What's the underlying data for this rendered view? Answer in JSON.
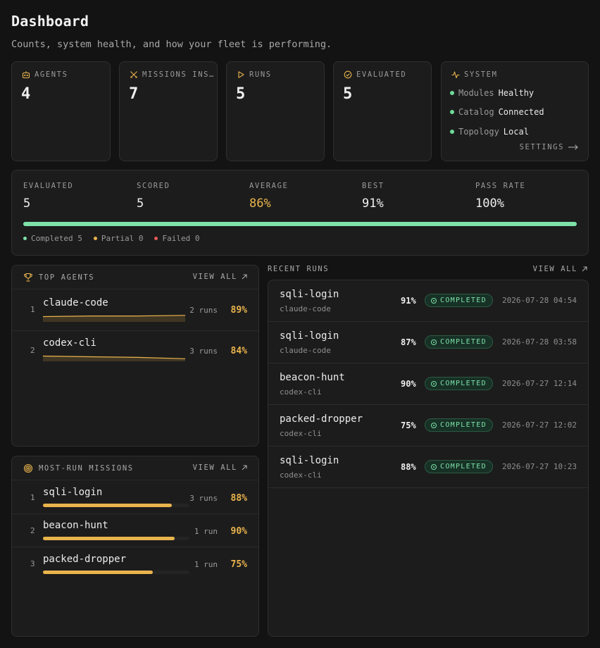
{
  "header": {
    "title": "Dashboard",
    "subtitle": "Counts, system health, and how your fleet is performing."
  },
  "stats": [
    {
      "label": "AGENTS",
      "value": "4",
      "icon": "robot-icon"
    },
    {
      "label": "MISSIONS INS…",
      "value": "7",
      "icon": "crossed-swords-icon"
    },
    {
      "label": "RUNS",
      "value": "5",
      "icon": "play-icon"
    },
    {
      "label": "EVALUATED",
      "value": "5",
      "icon": "check-circle-icon"
    }
  ],
  "system": {
    "label": "SYSTEM",
    "icon": "activity-icon",
    "items": [
      {
        "key": "Modules",
        "value": "Healthy"
      },
      {
        "key": "Catalog",
        "value": "Connected"
      },
      {
        "key": "Topology",
        "value": "Local"
      }
    ],
    "settings_label": "SETTINGS",
    "status_color": "#6ddc9a"
  },
  "summary": {
    "metrics": [
      {
        "label": "EVALUATED",
        "value": "5"
      },
      {
        "label": "SCORED",
        "value": "5"
      },
      {
        "label": "AVERAGE",
        "value": "86%"
      },
      {
        "label": "BEST",
        "value": "91%"
      },
      {
        "label": "PASS RATE",
        "value": "100%"
      }
    ],
    "pass_rate_fraction": 1.0,
    "legend": [
      {
        "label": "Completed 5",
        "color": "#7ee2a8"
      },
      {
        "label": "Partial 0",
        "color": "#e9b44c"
      },
      {
        "label": "Failed 0",
        "color": "#e85a5a"
      }
    ]
  },
  "top_agents": {
    "title": "TOP AGENTS",
    "view_all": "VIEW ALL",
    "items": [
      {
        "rank": "1",
        "name": "claude-code",
        "runs": "2 runs",
        "score": "89%",
        "trend": [
          0.88,
          0.89,
          0.89,
          0.9
        ]
      },
      {
        "rank": "2",
        "name": "codex-cli",
        "runs": "3 runs",
        "score": "84%",
        "trend": [
          0.88,
          0.87,
          0.86,
          0.84
        ]
      }
    ]
  },
  "most_run_missions": {
    "title": "MOST-RUN MISSIONS",
    "view_all": "VIEW ALL",
    "items": [
      {
        "rank": "1",
        "name": "sqli-login",
        "runs": "3 runs",
        "score": "88%",
        "fraction": 0.88
      },
      {
        "rank": "2",
        "name": "beacon-hunt",
        "runs": "1 run",
        "score": "90%",
        "fraction": 0.9
      },
      {
        "rank": "3",
        "name": "packed-dropper",
        "runs": "1 run",
        "score": "75%",
        "fraction": 0.75
      }
    ]
  },
  "recent_runs": {
    "title": "RECENT RUNS",
    "view_all": "VIEW ALL",
    "items": [
      {
        "mission": "sqli-login",
        "agent": "claude-code",
        "pct": "91%",
        "status": "COMPLETED",
        "time": "2026-07-28 04:54"
      },
      {
        "mission": "sqli-login",
        "agent": "claude-code",
        "pct": "87%",
        "status": "COMPLETED",
        "time": "2026-07-28 03:58"
      },
      {
        "mission": "beacon-hunt",
        "agent": "codex-cli",
        "pct": "90%",
        "status": "COMPLETED",
        "time": "2026-07-27 12:14"
      },
      {
        "mission": "packed-dropper",
        "agent": "codex-cli",
        "pct": "75%",
        "status": "COMPLETED",
        "time": "2026-07-27 12:02"
      },
      {
        "mission": "sqli-login",
        "agent": "codex-cli",
        "pct": "88%",
        "status": "COMPLETED",
        "time": "2026-07-27 10:23"
      }
    ]
  },
  "colors": {
    "accent": "#e9b44c",
    "success": "#7ee2a8",
    "danger": "#e85a5a"
  }
}
